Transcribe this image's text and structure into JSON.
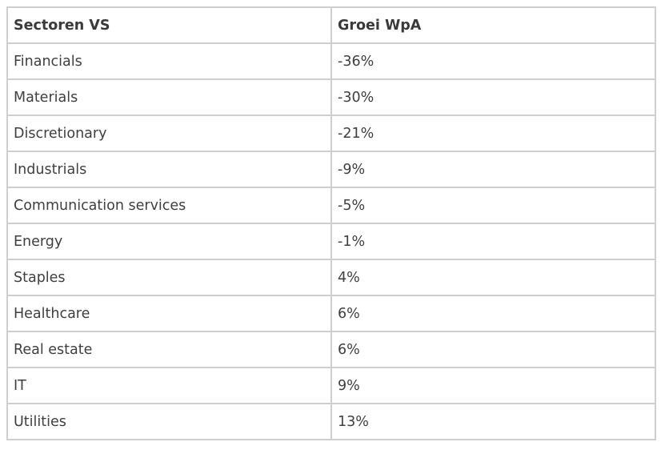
{
  "table": {
    "headers": [
      "Sectoren VS",
      "Groei WpA"
    ],
    "rows": [
      [
        "Financials",
        "-36%"
      ],
      [
        "Materials",
        "-30%"
      ],
      [
        "Discretionary",
        "-21%"
      ],
      [
        "Industrials",
        "-9%"
      ],
      [
        "Communication services",
        "-5%"
      ],
      [
        "Energy",
        "-1%"
      ],
      [
        "Staples",
        "4%"
      ],
      [
        "Healthcare",
        "6%"
      ],
      [
        "Real estate",
        "6%"
      ],
      [
        "IT",
        "9%"
      ],
      [
        "Utilities",
        "13%"
      ]
    ]
  }
}
